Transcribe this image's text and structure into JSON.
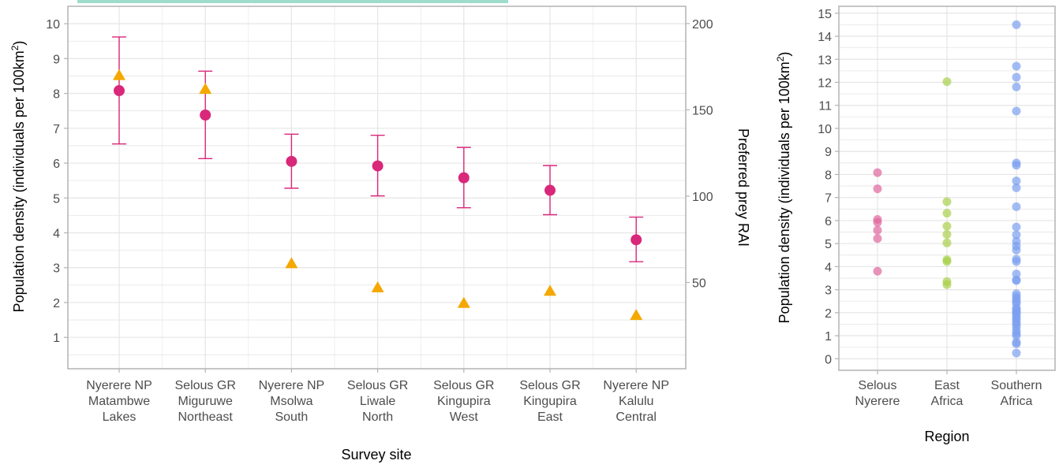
{
  "colors": {
    "density": "#d9277a",
    "prey": "#f5a800",
    "selous_nyerere": "#e0679e",
    "east_africa": "#a8d04b",
    "southern_africa": "#7c9ff0",
    "top_bar": "#9fdccb",
    "grid": "#e5e5e5",
    "panel_border": "#b3b3b3"
  },
  "chart_data": [
    {
      "type": "scatter",
      "xlabel": "Survey site",
      "ylabel": "Population density (individuals per 100km",
      "ylabel_superscript": "2",
      "ylabel_suffix": ")",
      "y2label": "Preferred prey RAI",
      "ylim": [
        0.1,
        10.5
      ],
      "y2lim": [
        0,
        210
      ],
      "yticks": [
        "1",
        "2",
        "3",
        "4",
        "5",
        "6",
        "7",
        "8",
        "9",
        "10"
      ],
      "y2ticks": [
        "50",
        "100",
        "150",
        "200"
      ],
      "grid": true,
      "categories": [
        [
          "Nyerere NP",
          "Matambwe",
          "Lakes"
        ],
        [
          "Selous GR",
          "Miguruwe",
          "Northeast"
        ],
        [
          "Nyerere NP",
          "Msolwa",
          "South"
        ],
        [
          "Selous GR",
          "Liwale",
          "North"
        ],
        [
          "Selous GR",
          "Kingupira",
          "West"
        ],
        [
          "Selous GR",
          "Kingupira",
          "East"
        ],
        [
          "Nyerere NP",
          "Kalulu",
          "Central"
        ]
      ],
      "density": [
        8.08,
        7.38,
        6.05,
        5.92,
        5.58,
        5.22,
        3.8
      ],
      "density_lower": [
        6.55,
        6.13,
        5.28,
        5.06,
        4.72,
        4.52,
        3.17
      ],
      "density_upper": [
        9.62,
        8.64,
        6.83,
        6.8,
        6.45,
        5.93,
        4.45
      ],
      "prey_rai": [
        170,
        162,
        61,
        47,
        38,
        45,
        31
      ]
    },
    {
      "type": "scatter",
      "xlabel": "Region",
      "ylabel": "Population density (individuals per 100km",
      "ylabel_superscript": "2",
      "ylabel_suffix": ")",
      "ylim": [
        -0.5,
        15.3
      ],
      "yticks": [
        "0",
        "1",
        "2",
        "3",
        "4",
        "5",
        "6",
        "7",
        "8",
        "9",
        "10",
        "11",
        "12",
        "13",
        "14",
        "15"
      ],
      "grid": true,
      "categories": [
        [
          "Selous",
          "Nyerere"
        ],
        [
          "East",
          "Africa"
        ],
        [
          "Southern",
          "Africa"
        ]
      ],
      "series": [
        {
          "values": [
            8.08,
            7.38,
            6.05,
            5.92,
            5.58,
            5.22,
            3.8
          ]
        },
        {
          "values": [
            12.03,
            6.82,
            6.32,
            5.76,
            5.4,
            5.03,
            4.3,
            4.22,
            3.35,
            3.22
          ]
        },
        {
          "values": [
            14.5,
            12.7,
            12.22,
            11.8,
            10.75,
            8.5,
            8.4,
            7.72,
            7.42,
            6.6,
            5.72,
            5.38,
            5.1,
            4.9,
            4.72,
            4.32,
            4.22,
            3.68,
            3.42,
            3.4,
            2.82,
            2.7,
            2.6,
            2.48,
            2.4,
            2.2,
            2.15,
            2.05,
            2.0,
            1.92,
            1.8,
            1.72,
            1.6,
            1.5,
            1.38,
            1.22,
            1.1,
            1.0,
            0.72,
            0.65,
            0.25
          ]
        }
      ]
    }
  ]
}
